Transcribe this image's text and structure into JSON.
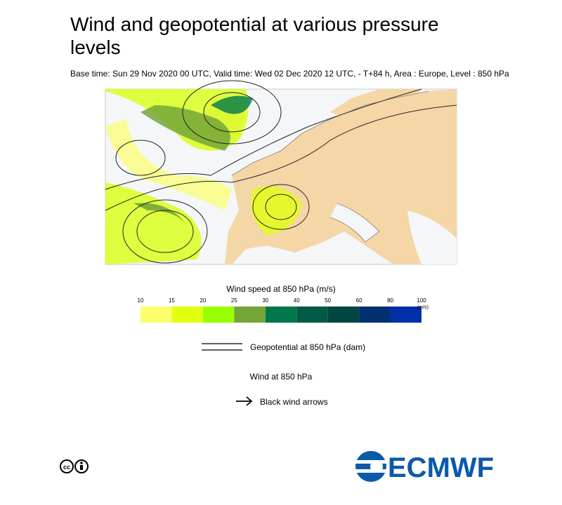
{
  "header": {
    "title_line1": "Wind and geopotential at various pressure",
    "title_line2": "levels",
    "subtitle": "Base time: Sun 29 Nov 2020 00 UTC, Valid time: Wed 02 Dec 2020 12 UTC, - T+84 h, Area : Europe, Level : 850 hPa"
  },
  "colorbar": {
    "title": "Wind speed at 850 hPa (m/s)",
    "unit": "(m/s)",
    "ticks": [
      10,
      15,
      20,
      25,
      30,
      40,
      50,
      60,
      80,
      100
    ],
    "colors": [
      "#fbff6a",
      "#e2ff10",
      "#99ff00",
      "#74a637",
      "#00784a",
      "#005a45",
      "#00483f",
      "#003070",
      "#0030a8"
    ]
  },
  "legend": {
    "geopotential": "Geopotential at 850 hPa (dam)",
    "wind_title": "Wind at 850 hPa",
    "arrows": "Black wind arrows"
  },
  "logo": "ECMWF"
}
